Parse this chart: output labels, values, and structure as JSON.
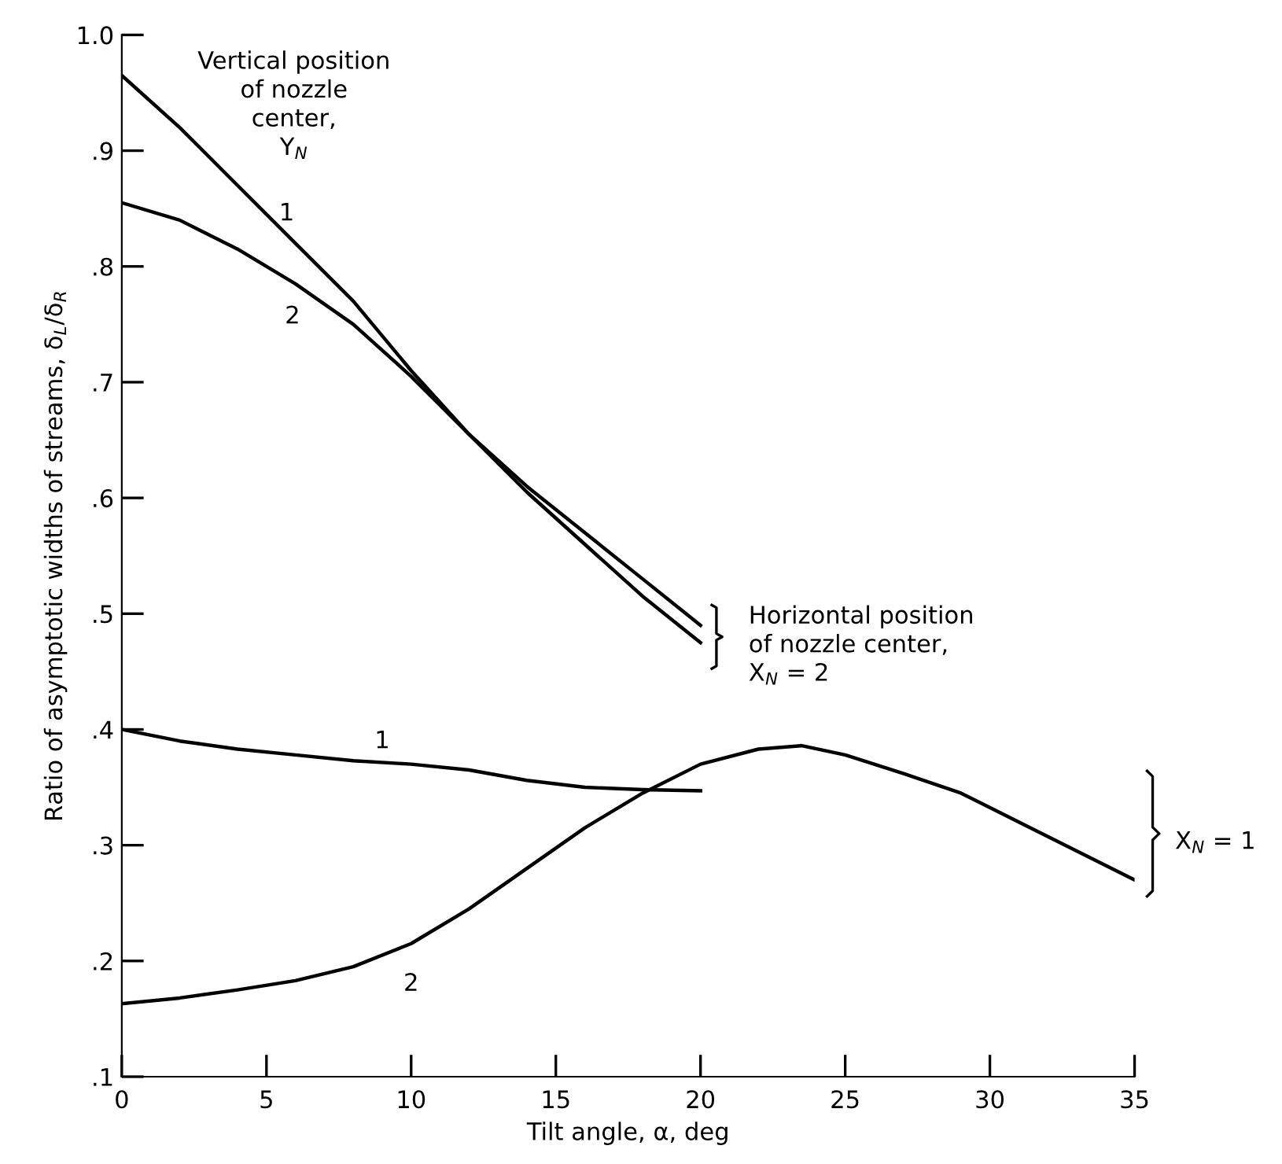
{
  "chart_data": {
    "type": "line",
    "xlabel": "Tilt angle, α, deg",
    "ylabel": "Ratio of asymptotic widths of streams, δ$_{L}$/δ$_{R}$",
    "xlim": [
      0,
      35
    ],
    "ylim": [
      0.1,
      1.0
    ],
    "xticks": [
      0,
      5,
      10,
      15,
      20,
      25,
      30,
      35
    ],
    "yticks": [
      {
        "value": 0.1,
        "label": ".1"
      },
      {
        "value": 0.2,
        "label": ".2"
      },
      {
        "value": 0.3,
        "label": ".3"
      },
      {
        "value": 0.4,
        "label": ".4"
      },
      {
        "value": 0.5,
        "label": ".5"
      },
      {
        "value": 0.6,
        "label": ".6"
      },
      {
        "value": 0.7,
        "label": ".7"
      },
      {
        "value": 0.8,
        "label": ".8"
      },
      {
        "value": 0.9,
        "label": ".9"
      },
      {
        "value": 1.0,
        "label": "1.0"
      }
    ],
    "grid": false,
    "legend": false,
    "marker": "none",
    "line_style": "solid",
    "series": [
      {
        "name": "1",
        "color": "#000000",
        "x": [
          0,
          2,
          4,
          6,
          8,
          10,
          12,
          14,
          16,
          18,
          20
        ],
        "values": [
          0.965,
          0.92,
          0.87,
          0.82,
          0.77,
          0.71,
          0.655,
          0.61,
          0.57,
          0.53,
          0.49
        ]
      },
      {
        "name": "2",
        "color": "#000000",
        "x": [
          0,
          2,
          4,
          6,
          8,
          10,
          12,
          14,
          16,
          18,
          20
        ],
        "values": [
          0.855,
          0.84,
          0.815,
          0.785,
          0.75,
          0.705,
          0.655,
          0.605,
          0.56,
          0.515,
          0.475
        ]
      },
      {
        "name": "1",
        "color": "#000000",
        "x": [
          0,
          2,
          4,
          6,
          8,
          10,
          12,
          14,
          16,
          18,
          20
        ],
        "values": [
          0.4,
          0.39,
          0.383,
          0.378,
          0.373,
          0.37,
          0.365,
          0.356,
          0.35,
          0.348,
          0.347
        ]
      },
      {
        "name": "2",
        "color": "#000000",
        "x": [
          0,
          2,
          4,
          6,
          8,
          10,
          12,
          14,
          16,
          18,
          20,
          22,
          23.5,
          25,
          27,
          29,
          31,
          33,
          35
        ],
        "values": [
          0.163,
          0.168,
          0.175,
          0.183,
          0.195,
          0.215,
          0.245,
          0.28,
          0.315,
          0.345,
          0.37,
          0.383,
          0.386,
          0.378,
          0.362,
          0.345,
          0.32,
          0.295,
          0.27
        ]
      }
    ],
    "annotations": [
      "Vertical position\nof nozzle\ncenter,\nY$_{N}$",
      {
        "text": "Horizontal position\nof nozzle center,\nX$_{N}$ = 2",
        "x": 20,
        "y": 0.48
      },
      "X$_{N}$ = 1"
    ]
  }
}
